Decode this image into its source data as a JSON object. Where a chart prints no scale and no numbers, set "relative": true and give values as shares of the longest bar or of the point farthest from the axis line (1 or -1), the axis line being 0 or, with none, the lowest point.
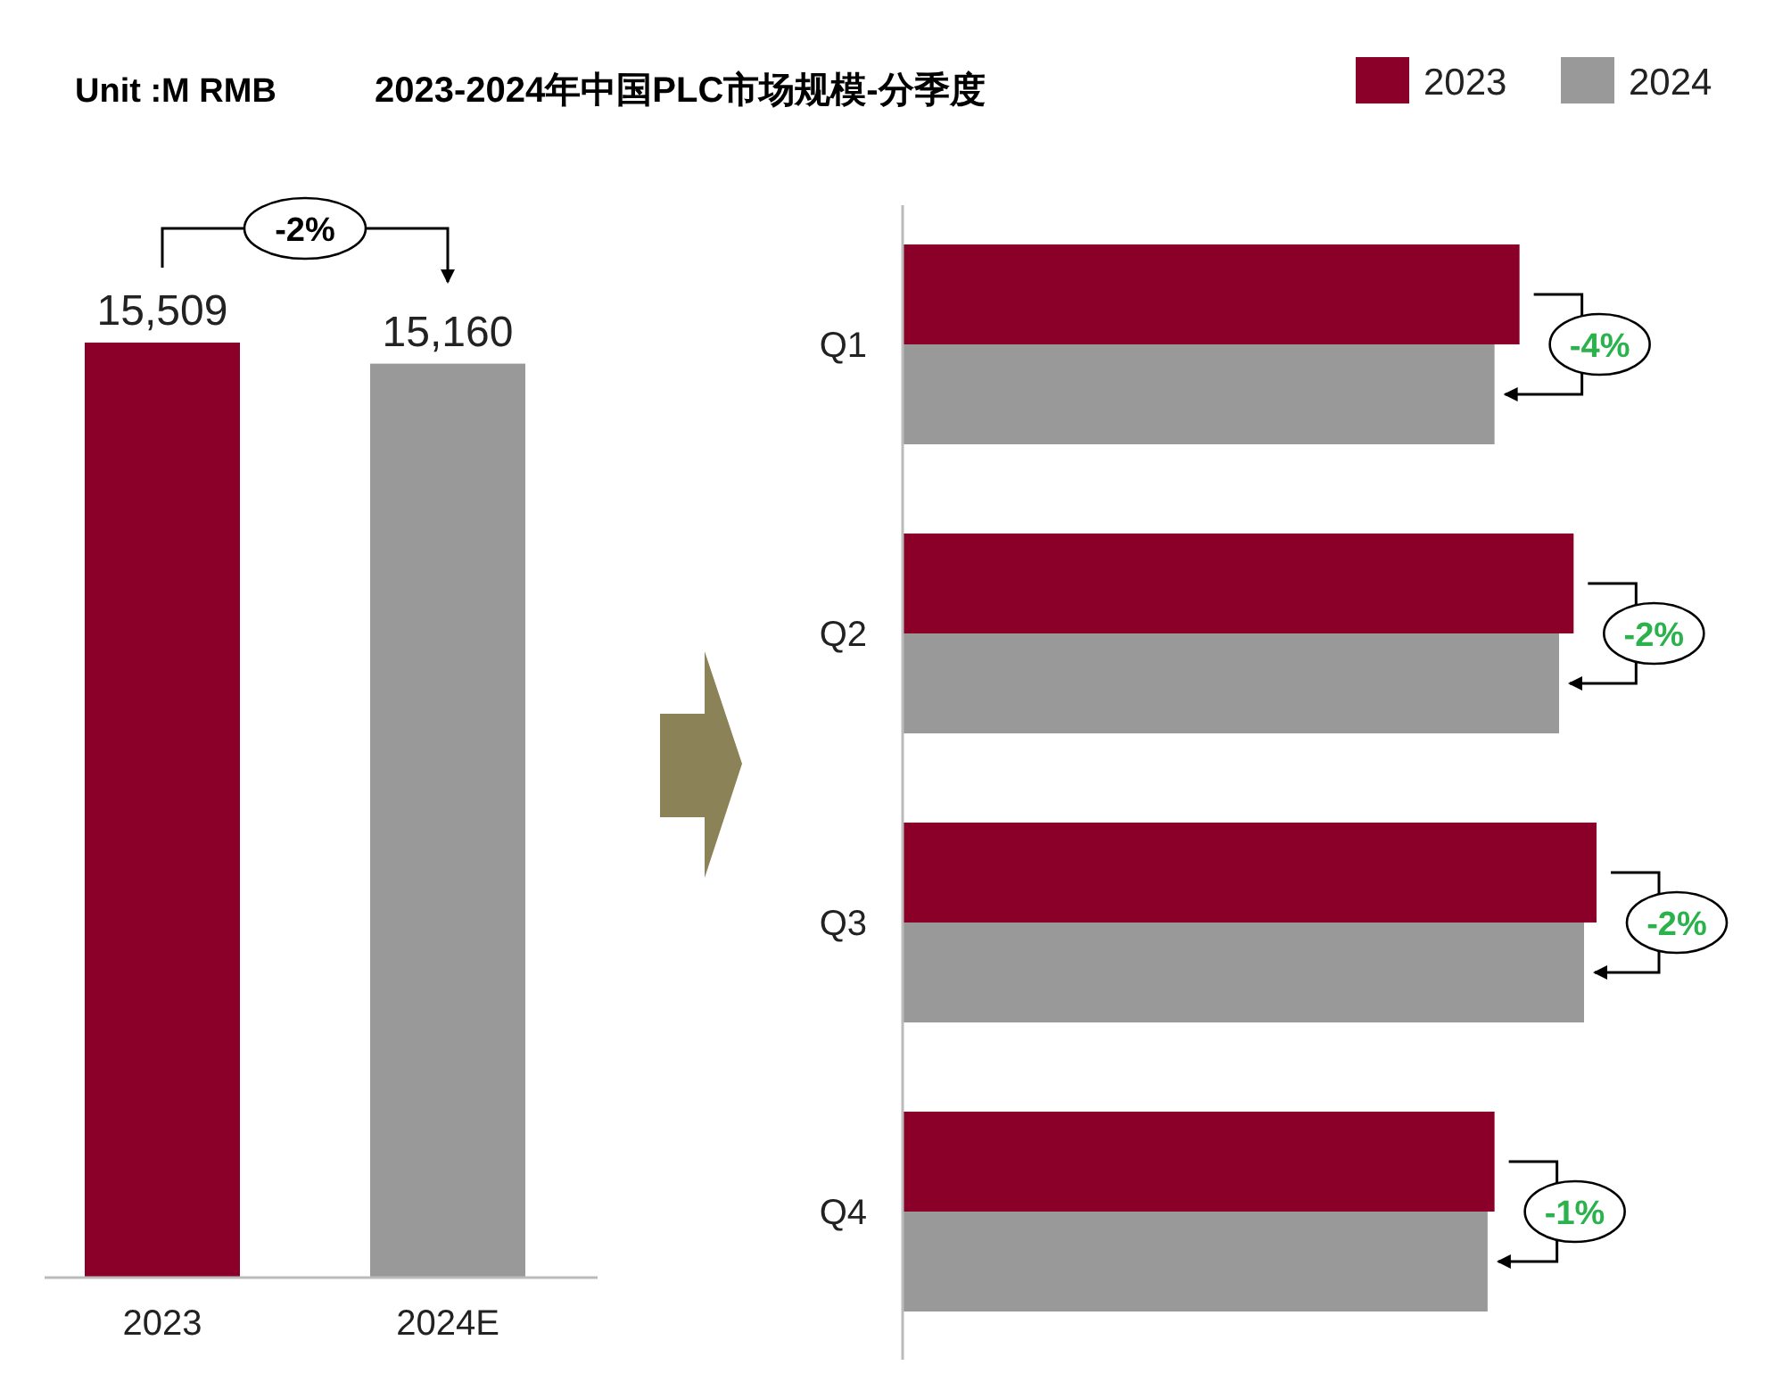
{
  "chart_data": [
    {
      "type": "bar",
      "title": "2023-2024年中国PLC市场规模-分季度",
      "subtitle": "Unit :M RMB",
      "categories": [
        "2023",
        "2024E"
      ],
      "values": [
        15509,
        15160
      ],
      "colors": [
        "#8b0029",
        "#999999"
      ],
      "value_labels": [
        "15,509",
        "15,160"
      ],
      "tick_labels": "x",
      "annotations": [
        "-2%"
      ]
    },
    {
      "type": "bar",
      "orientation": "horizontal",
      "relative": true,
      "categories": [
        "Q1",
        "Q2",
        "Q3",
        "Q4"
      ],
      "series": [
        {
          "name": "2023",
          "color": "#8b0029",
          "values": [
            0.889,
            0.967,
            1.0,
            0.853
          ]
        },
        {
          "name": "2024",
          "color": "#999999",
          "values": [
            0.853,
            0.946,
            0.982,
            0.843
          ]
        }
      ],
      "legend": "top right",
      "tick_labels": "y",
      "annotations": [
        "-4%",
        "-2%",
        "-2%",
        "-1%"
      ]
    }
  ]
}
